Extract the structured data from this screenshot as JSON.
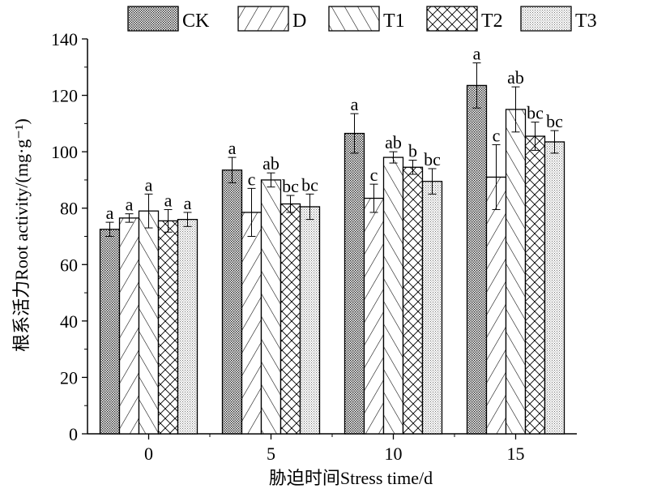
{
  "chart_data": {
    "type": "bar",
    "categories": [
      "0",
      "5",
      "10",
      "15"
    ],
    "series": [
      {
        "name": "CK",
        "pattern": "dots",
        "values": [
          72.5,
          93.5,
          106.5,
          123.5
        ],
        "errors": [
          2.5,
          4.5,
          7,
          8
        ],
        "letters": [
          "a",
          "a",
          "a",
          "a"
        ]
      },
      {
        "name": "D",
        "pattern": "forward-diagonal",
        "values": [
          76.5,
          78.5,
          83.5,
          91
        ],
        "errors": [
          1.5,
          8.5,
          5,
          11.5
        ],
        "letters": [
          "a",
          "c",
          "c",
          "c"
        ]
      },
      {
        "name": "T1",
        "pattern": "back-diagonal",
        "values": [
          79,
          90,
          98,
          115
        ],
        "errors": [
          6,
          2.5,
          2,
          8
        ],
        "letters": [
          "a",
          "ab",
          "ab",
          "ab"
        ]
      },
      {
        "name": "T2",
        "pattern": "crosshatch",
        "values": [
          75.5,
          81.5,
          94.5,
          105.5
        ],
        "errors": [
          4,
          3,
          2.5,
          5
        ],
        "letters": [
          "a",
          "bc",
          "b",
          "bc"
        ]
      },
      {
        "name": "T3",
        "pattern": "fine-dots",
        "values": [
          76,
          80.5,
          89.5,
          103.5
        ],
        "errors": [
          2.5,
          4.5,
          4.5,
          4
        ],
        "letters": [
          "a",
          "bc",
          "bc",
          "bc"
        ]
      }
    ],
    "ylabel": "根系活力Root activity/(mg·g⁻¹)",
    "xlabel": "胁迫时间Stress time/d",
    "ylim": [
      0,
      140
    ],
    "yticks": [
      0,
      20,
      40,
      60,
      80,
      100,
      120,
      140
    ],
    "grid": false,
    "legend_position": "top"
  }
}
